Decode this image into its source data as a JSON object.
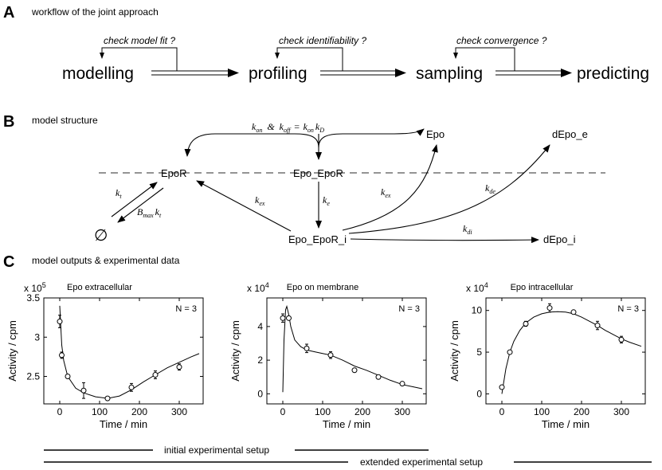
{
  "panels": {
    "a": {
      "letter": "A",
      "title": "workflow of the joint approach"
    },
    "b": {
      "letter": "B",
      "title": "model structure"
    },
    "c": {
      "letter": "C",
      "title": "model outputs & experimental data"
    }
  },
  "workflow": {
    "steps": [
      "modelling",
      "profiling",
      "sampling",
      "predicting"
    ],
    "checks": [
      "check model fit ?",
      "check identifiability ?",
      "check convergence ?"
    ]
  },
  "model": {
    "nodes": {
      "epor": "EpoR",
      "epo_epor": "Epo_EpoR",
      "epo": "Epo",
      "depo_e": "dEpo_e",
      "epo_epor_i": "Epo_EpoR_i",
      "depo_i": "dEpo_i",
      "empty": "∅"
    },
    "top_rate": {
      "kon_k": "k",
      "kon_s": "on",
      "amp": "&",
      "koff_k": "k",
      "koff_s": "off",
      "eq": "=",
      "k1": "k",
      "s1": "on",
      "k2": "k",
      "s2": "D"
    },
    "rates": {
      "kt": {
        "k": "k",
        "s": "t"
      },
      "bmax": {
        "b": "B",
        "bs": "max",
        "k": "k",
        "s": "t"
      },
      "kex1": {
        "k": "k",
        "s": "ex"
      },
      "ke": {
        "k": "k",
        "s": "e"
      },
      "kex2": {
        "k": "k",
        "s": "ex"
      },
      "kde": {
        "k": "k",
        "s": "de"
      },
      "kdi": {
        "k": "k",
        "s": "di"
      }
    }
  },
  "plots": [
    {
      "title": "Epo extracellular",
      "exponent_base": "x 10",
      "exponent": "5",
      "ylabel": "Activity / cpm",
      "xlabel": "Time / min",
      "n_label": "N = 3",
      "xticks": [
        "0",
        "100",
        "200",
        "300"
      ],
      "yticks": [
        "2.5",
        "3",
        "3.5"
      ]
    },
    {
      "title": "Epo on membrane",
      "exponent_base": "x 10",
      "exponent": "4",
      "ylabel": "Activity / cpm",
      "xlabel": "Time / min",
      "n_label": "N = 3",
      "xticks": [
        "0",
        "100",
        "200",
        "300"
      ],
      "yticks": [
        "0",
        "2",
        "4"
      ]
    },
    {
      "title": "Epo intracellular",
      "exponent_base": "x 10",
      "exponent": "4",
      "ylabel": "Activity / cpm",
      "xlabel": "Time / min",
      "n_label": "N = 3",
      "xticks": [
        "0",
        "100",
        "200",
        "300"
      ],
      "yticks": [
        "0",
        "5",
        "10"
      ]
    }
  ],
  "setup": {
    "initial": "initial experimental setup",
    "extended": "extended experimental setup"
  },
  "chart_data": [
    {
      "type": "scatter",
      "xlim": [
        -40,
        360
      ],
      "ylim": [
        2.15,
        3.5
      ],
      "points": {
        "x": [
          0,
          5,
          20,
          60,
          120,
          180,
          240,
          300
        ],
        "y": [
          3.2,
          2.77,
          2.5,
          2.32,
          2.22,
          2.36,
          2.52,
          2.62
        ],
        "err": [
          0.08,
          0.04,
          0.02,
          0.1,
          0.02,
          0.05,
          0.05,
          0.04
        ]
      },
      "model": {
        "x": [
          0,
          5,
          10,
          20,
          40,
          60,
          90,
          120,
          150,
          180,
          210,
          240,
          270,
          300,
          330,
          350
        ],
        "y": [
          3.4,
          2.9,
          2.7,
          2.5,
          2.35,
          2.29,
          2.24,
          2.22,
          2.25,
          2.33,
          2.43,
          2.52,
          2.61,
          2.68,
          2.75,
          2.79
        ]
      }
    },
    {
      "type": "scatter",
      "xlim": [
        -40,
        360
      ],
      "ylim": [
        -0.6,
        5.7
      ],
      "points": {
        "x": [
          0,
          15,
          60,
          120,
          180,
          240,
          300
        ],
        "y": [
          4.5,
          4.5,
          2.7,
          2.3,
          1.4,
          1.0,
          0.6
        ],
        "err": [
          0.25,
          0.1,
          0.25,
          0.2,
          0.1,
          0.1,
          0.05
        ]
      },
      "model": {
        "x": [
          0,
          3,
          7,
          10,
          15,
          20,
          30,
          45,
          60,
          80,
          100,
          120,
          150,
          180,
          210,
          240,
          270,
          300,
          330,
          350
        ],
        "y": [
          0.1,
          3.2,
          5.0,
          5.2,
          4.7,
          4.0,
          3.2,
          2.8,
          2.6,
          2.5,
          2.4,
          2.3,
          2.0,
          1.65,
          1.4,
          1.1,
          0.8,
          0.55,
          0.4,
          0.3
        ]
      }
    },
    {
      "type": "scatter",
      "xlim": [
        -40,
        360
      ],
      "ylim": [
        -1.2,
        11.5
      ],
      "points": {
        "x": [
          0,
          20,
          60,
          120,
          180,
          240,
          300
        ],
        "y": [
          0.8,
          5.0,
          8.4,
          10.3,
          9.8,
          8.2,
          6.5
        ],
        "err": [
          0.2,
          0.2,
          0.3,
          0.5,
          0.2,
          0.5,
          0.4
        ]
      },
      "model": {
        "x": [
          0,
          10,
          20,
          30,
          45,
          60,
          80,
          100,
          120,
          140,
          160,
          180,
          200,
          220,
          240,
          260,
          280,
          300,
          320,
          350
        ],
        "y": [
          0,
          3.0,
          5.0,
          6.3,
          7.6,
          8.5,
          9.2,
          9.6,
          9.8,
          9.85,
          9.8,
          9.6,
          9.2,
          8.7,
          8.2,
          7.6,
          7.1,
          6.6,
          6.2,
          5.7
        ]
      }
    }
  ]
}
